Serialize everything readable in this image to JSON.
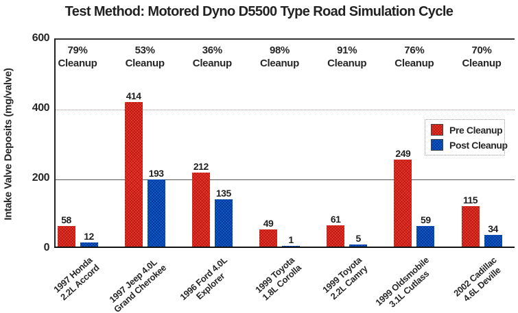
{
  "title": "Test Method: Motored Dyno D5500 Type Road Simulation Cycle",
  "y_axis": {
    "label": "Intake Valve Deposits (mg/valve)"
  },
  "cleanup_word": "Cleanup",
  "legend": {
    "items": [
      {
        "label": "Pre Cleanup",
        "color": "#ee3327"
      },
      {
        "label": "Post Cleanup",
        "color": "#0b5ed2"
      }
    ]
  },
  "chart_data": {
    "type": "bar",
    "title": "Test Method: Motored Dyno D5500 Type Road Simulation Cycle",
    "xlabel": "",
    "ylabel": "Intake Valve Deposits (mg/valve)",
    "ylim": [
      0,
      600
    ],
    "yticks": [
      0,
      200,
      400,
      600
    ],
    "grid": {
      "at_200": "solid",
      "at_400": "dotted",
      "at_600": "solid-top-border"
    },
    "legend_position": "middle-right",
    "categories": [
      {
        "line1": "1997 Honda",
        "line2": "2.2L Accord"
      },
      {
        "line1": "1997 Jeep 4.0L",
        "line2": "Grand Cherokee"
      },
      {
        "line1": "1996 Ford 4.0L",
        "line2": "Explorer"
      },
      {
        "line1": "1999 Toyota",
        "line2": "1.8L Corolla"
      },
      {
        "line1": "1999 Toyota",
        "line2": "2.2L Camry"
      },
      {
        "line1": "1999 Oldsmobile",
        "line2": "3.1L Cutlass"
      },
      {
        "line1": "2002 Cadillac",
        "line2": "4.6L Deville"
      }
    ],
    "cleanup_percent": [
      "79%",
      "53%",
      "36%",
      "98%",
      "91%",
      "76%",
      "70%"
    ],
    "series": [
      {
        "name": "Pre Cleanup",
        "color": "#ee3327",
        "values": [
          58,
          414,
          212,
          49,
          61,
          249,
          115
        ]
      },
      {
        "name": "Post Cleanup",
        "color": "#0b5ed2",
        "values": [
          12,
          193,
          135,
          1,
          5,
          59,
          34
        ]
      }
    ]
  }
}
